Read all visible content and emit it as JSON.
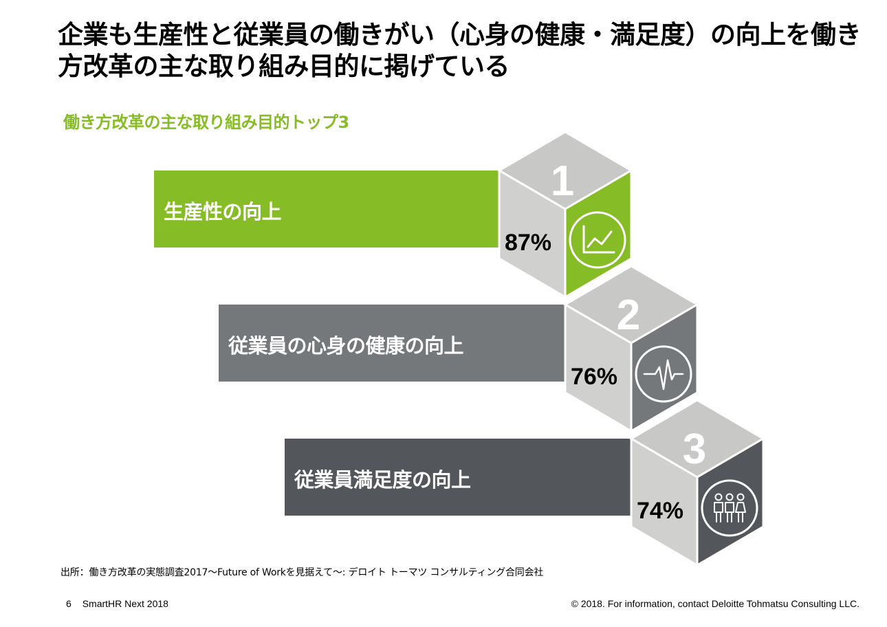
{
  "title": "企業も生産性と従業員の働きがい（心身の健康・満足度）の向上を働き方改革の主な取り組み目的に掲げている",
  "subtitle": "働き方改革の主な取り組み目的トップ3",
  "colors": {
    "accent_green": "#86bc25",
    "mid_gray": "#75787b",
    "dark_gray": "#53565a",
    "cube_light": "#d0d0ce",
    "cube_top": "#c8c8c6"
  },
  "chart_data": {
    "type": "bar",
    "title": "働き方改革の主な取り組み目的トップ3",
    "categories": [
      "生産性の向上",
      "従業員の心身の健康の向上",
      "従業員満足度の向上"
    ],
    "values": [
      87,
      76,
      74
    ],
    "ranks": [
      "1",
      "2",
      "3"
    ],
    "value_labels": [
      "87%",
      "76%",
      "74%"
    ],
    "icons": [
      "line-chart-icon",
      "heartbeat-icon",
      "people-icon"
    ],
    "bar_colors": [
      "#86bc25",
      "#75787b",
      "#53565a"
    ],
    "unit": "%"
  },
  "source": "出所：働き方改革の実態調査2017～Future of Workを見据えて～: デロイト トーマツ コンサルティング合同会社",
  "footer": {
    "page_number": "6",
    "event": "SmartHR Next 2018",
    "copyright": "© 2018. For information, contact Deloitte Tohmatsu Consulting LLC."
  }
}
